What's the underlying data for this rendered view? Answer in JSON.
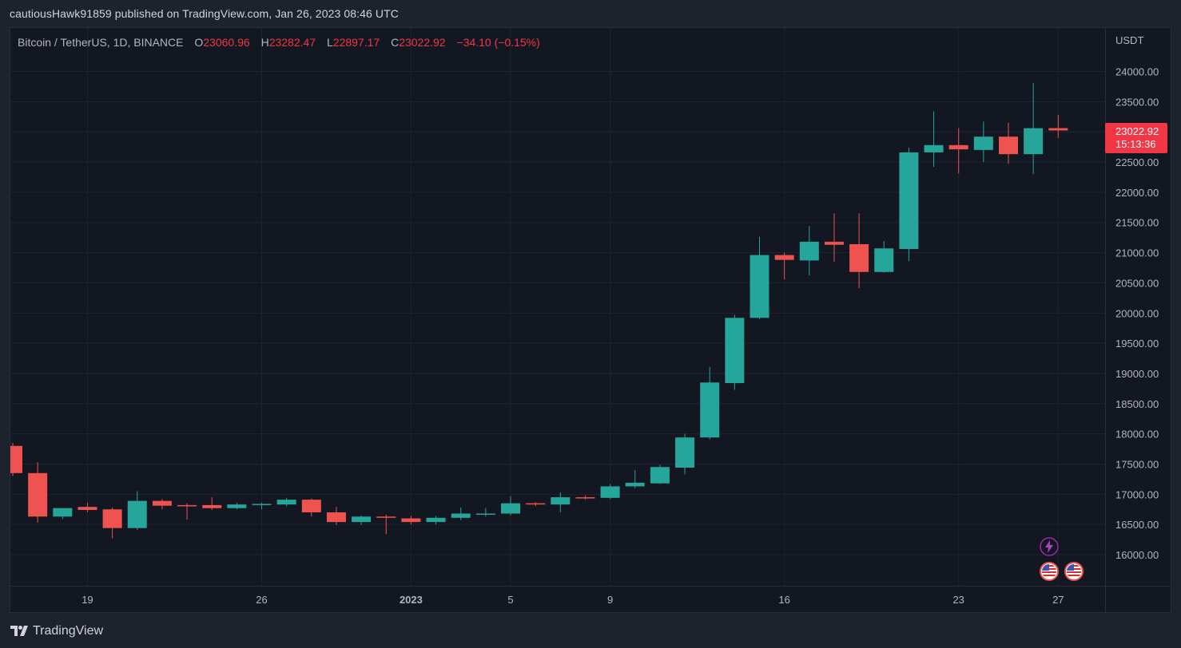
{
  "header": {
    "published_text": "cautiousHawk91859 published on TradingView.com, Jan 26, 2023 08:46 UTC"
  },
  "legend": {
    "symbol": "Bitcoin / TetherUS, 1D, BINANCE",
    "open_label": "O",
    "open": "23060.96",
    "high_label": "H",
    "high": "23282.47",
    "low_label": "L",
    "low": "22897.17",
    "close_label": "C",
    "close": "23022.92",
    "change": "−34.10 (−0.15%)"
  },
  "price_axis": {
    "currency": "USDT",
    "last_price": "23022.92",
    "countdown": "15:13:36"
  },
  "footer": {
    "brand": "TradingView"
  },
  "colors": {
    "up": "#26a69a",
    "down": "#ef5350",
    "background": "#131722",
    "grid": "#1f2430",
    "text": "#b2b5be"
  },
  "icons": {
    "event_lightning": "lightning-icon",
    "event_flag_1": "us-flag-icon",
    "event_flag_2": "us-flag-icon"
  },
  "chart_data": {
    "type": "candlestick",
    "y_axis": {
      "min": 15500,
      "max": 24300,
      "ticks": [
        "16000.00",
        "16500.00",
        "17000.00",
        "17500.00",
        "18000.00",
        "18500.00",
        "19000.00",
        "19500.00",
        "20000.00",
        "20500.00",
        "21000.00",
        "21500.00",
        "22000.00",
        "22500.00",
        "23000.00",
        "23500.00",
        "24000.00"
      ]
    },
    "x_axis": {
      "ticks": [
        {
          "label": "19",
          "index": 3,
          "bold": false
        },
        {
          "label": "26",
          "index": 10,
          "bold": false
        },
        {
          "label": "2023",
          "index": 16,
          "bold": true
        },
        {
          "label": "5",
          "index": 20,
          "bold": false
        },
        {
          "label": "9",
          "index": 24,
          "bold": false
        },
        {
          "label": "16",
          "index": 31,
          "bold": false
        },
        {
          "label": "23",
          "index": 38,
          "bold": false
        },
        {
          "label": "27",
          "index": 42,
          "bold": false
        }
      ]
    },
    "candles": [
      {
        "o": 17800,
        "h": 17850,
        "l": 17300,
        "c": 17350
      },
      {
        "o": 17350,
        "h": 17530,
        "l": 16530,
        "c": 16630
      },
      {
        "o": 16630,
        "h": 16770,
        "l": 16590,
        "c": 16770
      },
      {
        "o": 16790,
        "h": 16860,
        "l": 16700,
        "c": 16740
      },
      {
        "o": 16750,
        "h": 16780,
        "l": 16270,
        "c": 16440
      },
      {
        "o": 16440,
        "h": 17050,
        "l": 16410,
        "c": 16890
      },
      {
        "o": 16890,
        "h": 16920,
        "l": 16750,
        "c": 16810
      },
      {
        "o": 16820,
        "h": 16850,
        "l": 16580,
        "c": 16810
      },
      {
        "o": 16820,
        "h": 16950,
        "l": 16740,
        "c": 16770
      },
      {
        "o": 16770,
        "h": 16860,
        "l": 16750,
        "c": 16830
      },
      {
        "o": 16830,
        "h": 16860,
        "l": 16750,
        "c": 16840
      },
      {
        "o": 16830,
        "h": 16940,
        "l": 16800,
        "c": 16910
      },
      {
        "o": 16910,
        "h": 16930,
        "l": 16630,
        "c": 16700
      },
      {
        "o": 16700,
        "h": 16790,
        "l": 16490,
        "c": 16540
      },
      {
        "o": 16540,
        "h": 16650,
        "l": 16490,
        "c": 16630
      },
      {
        "o": 16630,
        "h": 16660,
        "l": 16340,
        "c": 16610
      },
      {
        "o": 16600,
        "h": 16640,
        "l": 16500,
        "c": 16540
      },
      {
        "o": 16540,
        "h": 16640,
        "l": 16500,
        "c": 16610
      },
      {
        "o": 16610,
        "h": 16780,
        "l": 16570,
        "c": 16680
      },
      {
        "o": 16670,
        "h": 16770,
        "l": 16630,
        "c": 16680
      },
      {
        "o": 16680,
        "h": 16970,
        "l": 16650,
        "c": 16850
      },
      {
        "o": 16850,
        "h": 16870,
        "l": 16800,
        "c": 16830
      },
      {
        "o": 16830,
        "h": 17030,
        "l": 16700,
        "c": 16950
      },
      {
        "o": 16950,
        "h": 16980,
        "l": 16910,
        "c": 16940
      },
      {
        "o": 16940,
        "h": 17170,
        "l": 16920,
        "c": 17130
      },
      {
        "o": 17130,
        "h": 17400,
        "l": 17100,
        "c": 17190
      },
      {
        "o": 17180,
        "h": 17490,
        "l": 17170,
        "c": 17450
      },
      {
        "o": 17440,
        "h": 18000,
        "l": 17330,
        "c": 17940
      },
      {
        "o": 17940,
        "h": 19110,
        "l": 17910,
        "c": 18850
      },
      {
        "o": 18840,
        "h": 19970,
        "l": 18730,
        "c": 19920
      },
      {
        "o": 19920,
        "h": 21260,
        "l": 19900,
        "c": 20960
      },
      {
        "o": 20960,
        "h": 21000,
        "l": 20560,
        "c": 20880
      },
      {
        "o": 20870,
        "h": 21440,
        "l": 20620,
        "c": 21180
      },
      {
        "o": 21180,
        "h": 21650,
        "l": 20850,
        "c": 21130
      },
      {
        "o": 21140,
        "h": 21650,
        "l": 20410,
        "c": 20680
      },
      {
        "o": 20680,
        "h": 21190,
        "l": 20670,
        "c": 21070
      },
      {
        "o": 21060,
        "h": 22740,
        "l": 20860,
        "c": 22660
      },
      {
        "o": 22660,
        "h": 23340,
        "l": 22420,
        "c": 22780
      },
      {
        "o": 22780,
        "h": 23060,
        "l": 22310,
        "c": 22710
      },
      {
        "o": 22700,
        "h": 23170,
        "l": 22500,
        "c": 22920
      },
      {
        "o": 22920,
        "h": 23150,
        "l": 22470,
        "c": 22630
      },
      {
        "o": 22630,
        "h": 23810,
        "l": 22300,
        "c": 23060
      },
      {
        "o": 23061,
        "h": 23282,
        "l": 22897,
        "c": 23023
      }
    ]
  }
}
